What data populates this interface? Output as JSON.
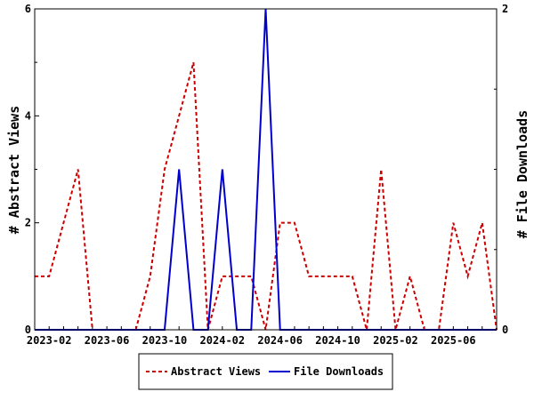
{
  "chart_data": {
    "type": "line",
    "x": [
      "2023-01",
      "2023-02",
      "2023-03",
      "2023-04",
      "2023-05",
      "2023-06",
      "2023-07",
      "2023-08",
      "2023-09",
      "2023-10",
      "2023-11",
      "2023-12",
      "2024-01",
      "2024-02",
      "2024-03",
      "2024-04",
      "2024-05",
      "2024-06",
      "2024-07",
      "2024-08",
      "2024-09",
      "2024-10",
      "2024-11",
      "2024-12",
      "2025-01",
      "2025-02",
      "2025-03",
      "2025-04",
      "2025-05",
      "2025-06",
      "2025-07",
      "2025-08",
      "2025-09"
    ],
    "x_tick_labels": [
      "2023-02",
      "2023-06",
      "2023-10",
      "2024-02",
      "2024-06",
      "2024-10",
      "2025-02",
      "2025-06"
    ],
    "series": [
      {
        "name": "Abstract Views",
        "axis": "left",
        "color": "#cc0000",
        "style": "dashed",
        "values": [
          1,
          1,
          2,
          3,
          0,
          0,
          0,
          0,
          1,
          3,
          4,
          5,
          0,
          1,
          1,
          1,
          0,
          2,
          2,
          1,
          1,
          1,
          1,
          0,
          3,
          0,
          1,
          0,
          0,
          2,
          1,
          2,
          0
        ]
      },
      {
        "name": "File Downloads",
        "axis": "right",
        "color": "#0000cc",
        "style": "solid",
        "values": [
          0,
          0,
          0,
          0,
          0,
          0,
          0,
          0,
          0,
          0,
          1,
          0,
          0,
          1,
          0,
          0,
          2,
          0,
          0,
          0,
          0,
          0,
          0,
          0,
          0,
          0,
          0,
          0,
          0,
          0,
          0,
          0,
          0
        ]
      }
    ],
    "ylabel": "# Abstract Views",
    "y2label": "# File Downloads",
    "ylim": [
      0,
      6
    ],
    "y_ticks": [
      "0",
      "2",
      "4",
      "6"
    ],
    "y2lim": [
      0,
      2
    ],
    "y2_ticks": [
      "0",
      "2"
    ],
    "grid": false,
    "legend_position": "bottom"
  }
}
